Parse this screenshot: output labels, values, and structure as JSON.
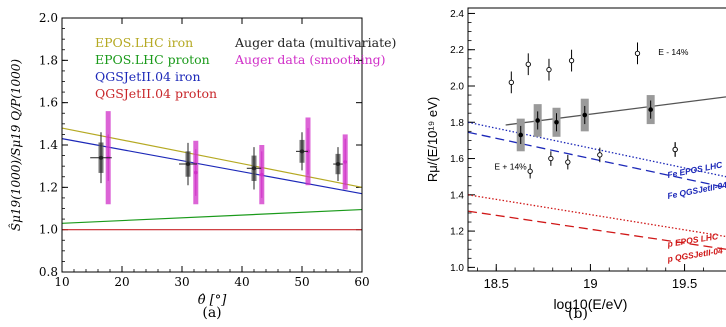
{
  "chart_data": [
    {
      "panel_label": "(a)",
      "type": "line",
      "xlabel": "θ̂ [°]",
      "ylabel": "Ŝμ19(1000)/Sμ19 Q/P(1000)",
      "xlim": [
        10,
        60
      ],
      "ylim": [
        0.8,
        2.0
      ],
      "x_ticks": [
        "10",
        "20",
        "30",
        "40",
        "50",
        "60"
      ],
      "y_ticks": [
        "0.8",
        "1.0",
        "1.2",
        "1.4",
        "1.6",
        "1.8",
        "2.0"
      ],
      "grid": false,
      "legend": [
        {
          "text": "EPOS.LHC iron",
          "color": "#b5a923"
        },
        {
          "text": "EPOS.LHC proton",
          "color": "#1a9a1a"
        },
        {
          "text": "QGSJetII.04 iron",
          "color": "#1c28b8"
        },
        {
          "text": "QGSJetII.04 proton",
          "color": "#c8262a"
        },
        {
          "text": "Auger data (multivariate)",
          "color": "#222222"
        },
        {
          "text": "Auger data (smoothing)",
          "color": "#d030c8"
        }
      ],
      "series": [
        {
          "name": "EPOS.LHC iron",
          "color": "#b5a923",
          "x": [
            10,
            60
          ],
          "y": [
            1.48,
            1.2
          ]
        },
        {
          "name": "EPOS.LHC proton",
          "color": "#1a9a1a",
          "x": [
            10,
            60
          ],
          "y": [
            1.03,
            1.095
          ]
        },
        {
          "name": "QGSJetII.04 iron",
          "color": "#1c28b8",
          "x": [
            10,
            60
          ],
          "y": [
            1.43,
            1.17
          ]
        },
        {
          "name": "QGSJetII.04 proton",
          "color": "#c8262a",
          "x": [
            10,
            60
          ],
          "y": [
            1.0,
            1.0
          ]
        }
      ],
      "points_multivariate": {
        "color": "#222222",
        "x": [
          16.5,
          31,
          42,
          50,
          56
        ],
        "y": [
          1.34,
          1.31,
          1.29,
          1.37,
          1.31
        ],
        "stat_err": [
          0.05,
          0.05,
          0.05,
          0.05,
          0.05
        ],
        "sys_err": [
          0.12,
          0.1,
          0.1,
          0.09,
          0.08
        ],
        "x_err": [
          1.8,
          1.5,
          1.2,
          1.0,
          0.8
        ]
      },
      "points_smoothing": {
        "color": "#d030c8",
        "x": [
          17.7,
          32.3,
          43.3,
          51,
          57.2
        ],
        "y": [
          1.34,
          1.27,
          1.26,
          1.37,
          1.32
        ],
        "stat_err": [
          0.05,
          0.05,
          0.05,
          0.05,
          0.05
        ],
        "sys_err": [
          0.22,
          0.15,
          0.14,
          0.16,
          0.13
        ]
      }
    },
    {
      "panel_label": "(b)",
      "type": "line",
      "xlabel": "log10(E/eV)",
      "ylabel": "Rμ/(E/10¹⁹ eV)",
      "xlim": [
        18.35,
        19.72
      ],
      "ylim": [
        0.98,
        2.43
      ],
      "x_ticks": [
        "18.5",
        "19",
        "19.5"
      ],
      "y_ticks": [
        "1.0",
        "1.2",
        "1.4",
        "1.6",
        "1.8",
        "2.0",
        "2.2",
        "2.4"
      ],
      "grid": false,
      "annotations": [
        "E - 14%",
        "E + 14%"
      ],
      "line_labels": [
        {
          "text": "Fe EPOS LHC",
          "color": "#1c28b8"
        },
        {
          "text": "Fe QGSJetII-04",
          "color": "#1c28b8"
        },
        {
          "text": "p EPOS LHC",
          "color": "#d01818"
        },
        {
          "text": "p QGSJetII-04",
          "color": "#d01818"
        }
      ],
      "series": [
        {
          "name": "Fe EPOS LHC",
          "color": "#1c28b8",
          "style": "dotted",
          "x": [
            18.35,
            19.72
          ],
          "y": [
            1.8,
            1.5
          ]
        },
        {
          "name": "Fe QGSJetII-04",
          "color": "#1c28b8",
          "style": "dashed",
          "x": [
            18.35,
            19.72
          ],
          "y": [
            1.745,
            1.44
          ]
        },
        {
          "name": "p EPOS LHC",
          "color": "#d01818",
          "style": "dotted",
          "x": [
            18.35,
            19.72
          ],
          "y": [
            1.4,
            1.17
          ]
        },
        {
          "name": "p QGSJetII-04",
          "color": "#d01818",
          "style": "dashed",
          "x": [
            18.35,
            19.72
          ],
          "y": [
            1.31,
            1.1
          ]
        },
        {
          "name": "fit",
          "color": "#555555",
          "style": "solid",
          "x": [
            18.55,
            19.72
          ],
          "y": [
            1.785,
            1.94
          ]
        }
      ],
      "points_filled": {
        "x": [
          18.63,
          18.72,
          18.82,
          18.97,
          19.32
        ],
        "y": [
          1.73,
          1.81,
          1.8,
          1.84,
          1.87
        ],
        "err": [
          0.05,
          0.05,
          0.05,
          0.05,
          0.05
        ],
        "sys": [
          0.09,
          0.09,
          0.08,
          0.09,
          0.08
        ]
      },
      "points_open": {
        "x": [
          18.58,
          18.67,
          18.78,
          18.9,
          19.25,
          19.45
        ],
        "y": [
          2.02,
          2.12,
          2.09,
          2.14,
          2.18,
          1.65
        ],
        "err": [
          0.06,
          0.06,
          0.06,
          0.06,
          0.06,
          0.04
        ]
      },
      "points_open_low": {
        "x": [
          18.68,
          18.79,
          18.88,
          19.05,
          19.45
        ],
        "y": [
          1.53,
          1.6,
          1.58,
          1.62,
          1.65
        ],
        "err": [
          0.04,
          0.04,
          0.04,
          0.04,
          0.04
        ]
      }
    }
  ]
}
